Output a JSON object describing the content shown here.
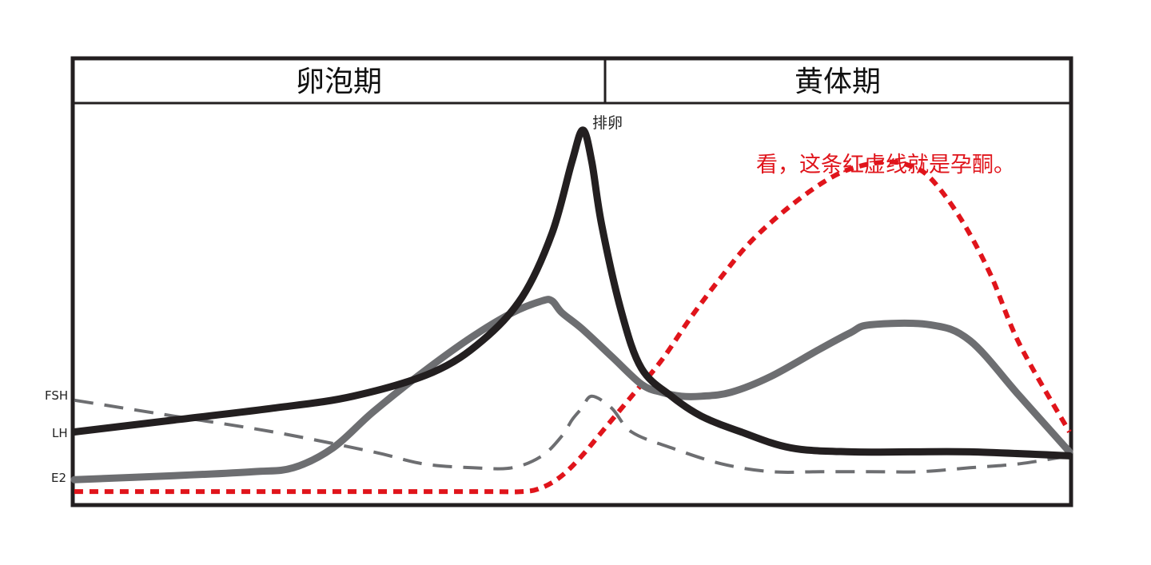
{
  "chart_data": {
    "type": "line",
    "title": "",
    "xlabel": "",
    "ylabel": "",
    "xlim": [
      0,
      100
    ],
    "ylim": [
      0,
      100
    ],
    "grid": false,
    "legend": "none",
    "phases": [
      {
        "label": "卵泡期",
        "x_start": 0,
        "x_end": 53.3
      },
      {
        "label": "黄体期",
        "x_start": 53.3,
        "x_end": 100
      }
    ],
    "ovulation": {
      "label": "排卵",
      "x": 51.1
    },
    "annotation": {
      "text": "看，这条红虚线就是孕酮。",
      "color": "#e0141b"
    },
    "series": [
      {
        "name": "LH",
        "color": "#231f20",
        "style": "solid",
        "x": [
          0,
          10,
          20,
          28,
          36,
          41,
          45,
          48,
          50,
          51.1,
          52,
          53,
          55,
          57,
          60,
          63,
          67,
          72,
          78,
          84,
          90,
          100
        ],
        "values": [
          18,
          21,
          24,
          27,
          33,
          41,
          52,
          68,
          86,
          94,
          86,
          70,
          48,
          34,
          27,
          22,
          18,
          14,
          13,
          13,
          13,
          12
        ]
      },
      {
        "name": "E2",
        "color": "#6d6e71",
        "style": "solid",
        "x": [
          0,
          10,
          18,
          22,
          26,
          30,
          35,
          40,
          44,
          47,
          48,
          49,
          51,
          54,
          57,
          59,
          61,
          63,
          66,
          70,
          75,
          78,
          80,
          86,
          90,
          95,
          100
        ],
        "values": [
          6,
          7,
          8,
          9,
          14,
          23,
          33,
          42,
          48,
          51,
          51,
          48,
          44,
          37,
          30,
          28,
          27,
          27,
          28,
          32,
          39,
          43,
          45,
          45,
          41,
          27,
          13
        ]
      },
      {
        "name": "FSH",
        "color": "#6d6e71",
        "style": "dashed",
        "x": [
          0,
          10,
          20,
          30,
          35,
          40,
          44,
          47,
          49,
          50,
          51,
          52,
          54,
          56,
          60,
          65,
          70,
          75,
          80,
          85,
          90,
          95,
          100
        ],
        "values": [
          26,
          22,
          18,
          13,
          10,
          9,
          9,
          12,
          17,
          21,
          24,
          27,
          24,
          18,
          14,
          10,
          8,
          8,
          8,
          8,
          9,
          10,
          12
        ]
      },
      {
        "name": "孕酮",
        "color": "#e0141b",
        "style": "dotted",
        "x": [
          0,
          20,
          40,
          45,
          47,
          49,
          51,
          53,
          56,
          59,
          62,
          65,
          68,
          72,
          76,
          79,
          82,
          84,
          86,
          89,
          92,
          95,
          100
        ],
        "values": [
          3,
          3,
          3,
          3,
          4,
          7,
          12,
          18,
          27,
          36,
          47,
          57,
          66,
          75,
          82,
          85,
          86,
          85,
          82,
          72,
          58,
          40,
          18
        ]
      }
    ]
  }
}
